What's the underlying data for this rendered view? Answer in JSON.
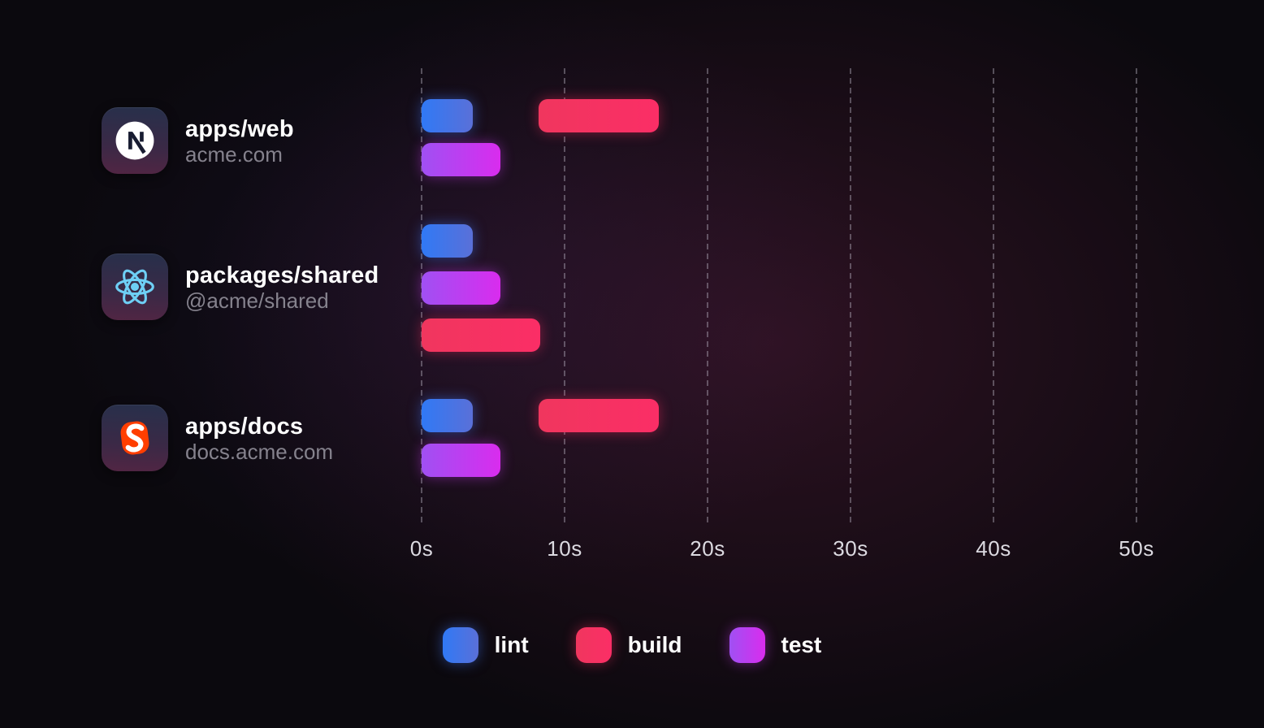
{
  "chart_data": {
    "type": "gantt",
    "description": "Monorepo task timeline: lint/build/test durations per package",
    "unit": "seconds",
    "x_axis": {
      "ticks": [
        {
          "label": "0s",
          "value": 0
        },
        {
          "label": "10s",
          "value": 10
        },
        {
          "label": "20s",
          "value": 20
        },
        {
          "label": "30s",
          "value": 30
        },
        {
          "label": "40s",
          "value": 40
        },
        {
          "label": "50s",
          "value": 50
        }
      ],
      "range": [
        0,
        53
      ],
      "gridlines": "dashed-vertical"
    },
    "rows": [
      {
        "package": "apps/web",
        "subtitle": "acme.com",
        "icon": "nextjs-icon",
        "tasks": [
          {
            "name": "lint",
            "start_s": 0,
            "end_s": 3.6,
            "lane": 0
          },
          {
            "name": "build",
            "start_s": 8.2,
            "end_s": 16.6,
            "lane": 0
          },
          {
            "name": "test",
            "start_s": 0,
            "end_s": 5.5,
            "lane": 1
          }
        ]
      },
      {
        "package": "packages/shared",
        "subtitle": "@acme/shared",
        "icon": "react-icon",
        "tasks": [
          {
            "name": "lint",
            "start_s": 0,
            "end_s": 3.6,
            "lane": 0
          },
          {
            "name": "test",
            "start_s": 0,
            "end_s": 5.5,
            "lane": 1
          },
          {
            "name": "build",
            "start_s": 0,
            "end_s": 8.3,
            "lane": 2
          }
        ]
      },
      {
        "package": "apps/docs",
        "subtitle": "docs.acme.com",
        "icon": "svelte-icon",
        "tasks": [
          {
            "name": "lint",
            "start_s": 0,
            "end_s": 3.6,
            "lane": 0
          },
          {
            "name": "build",
            "start_s": 8.2,
            "end_s": 16.6,
            "lane": 0
          },
          {
            "name": "test",
            "start_s": 0,
            "end_s": 5.5,
            "lane": 1
          }
        ]
      }
    ],
    "legend": [
      {
        "label": "lint",
        "color": "#3b76f0"
      },
      {
        "label": "build",
        "color": "#f63360"
      },
      {
        "label": "test",
        "color": "#c53bf1"
      }
    ],
    "legend_position": "bottom-center"
  },
  "colors": {
    "background": "#0b090e",
    "glow_plum": "#a83068",
    "glow_violet": "#6e46c8",
    "gridline": "#c4bfce",
    "axis_label": "#dcdae1",
    "package_name": "#ffffff",
    "package_subtitle": "#85828d",
    "lint_gradient": [
      "#3079f5",
      "#5a70d8"
    ],
    "build_gradient": [
      "#f0365e",
      "#fb2e66"
    ],
    "test_gradient": [
      "#a050f3",
      "#d92cee"
    ],
    "nextjs_brand": "#ffffff",
    "react_brand": "#6ecff5",
    "svelte_brand": "#ff3e00"
  }
}
